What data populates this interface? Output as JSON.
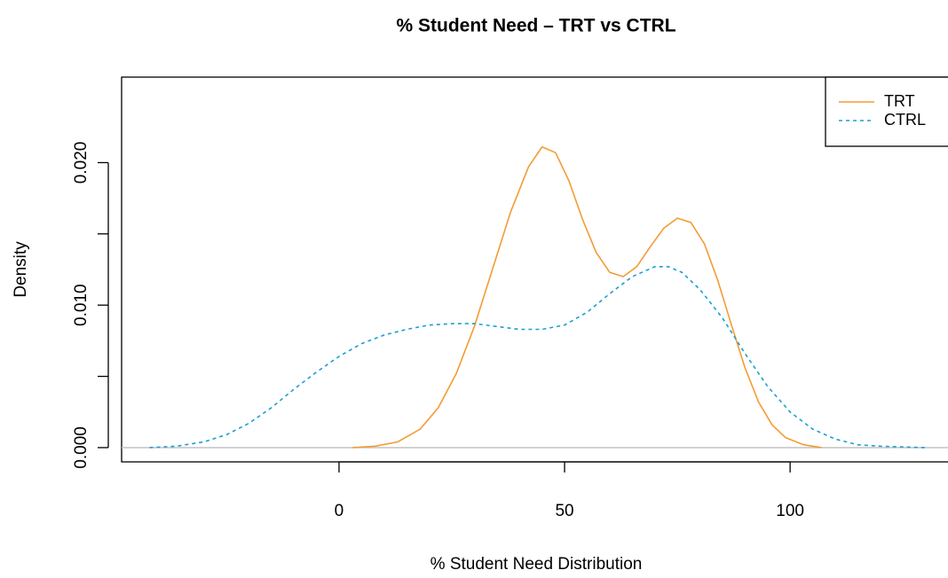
{
  "chart_data": {
    "type": "line",
    "title": "% Student Need – TRT vs CTRL",
    "xlabel": "% Student Need Distribution",
    "ylabel": "Density",
    "xlim": [
      -48.2,
      135
    ],
    "ylim": [
      -0.001,
      0.026
    ],
    "xticks": [
      0,
      50,
      100
    ],
    "yticks": [
      {
        "value": 0,
        "label": "0.000"
      },
      {
        "value": 0.005,
        "label": null
      },
      {
        "value": 0.01,
        "label": "0.010"
      },
      {
        "value": 0.015,
        "label": null
      },
      {
        "value": 0.02,
        "label": "0.020"
      }
    ],
    "legend": "topright",
    "series": [
      {
        "name": "TRT",
        "color": "#f39c34",
        "dash": false,
        "x": [
          3,
          8,
          13,
          18,
          22,
          26,
          30,
          34,
          38,
          42,
          45,
          48,
          51,
          54,
          57,
          60,
          63,
          66,
          69,
          72,
          75,
          78,
          81,
          84,
          87,
          90,
          93,
          96,
          99,
          103,
          107
        ],
        "values": [
          0,
          0.0001,
          0.0004,
          0.0013,
          0.0028,
          0.0052,
          0.0085,
          0.0125,
          0.0165,
          0.0197,
          0.0211,
          0.0207,
          0.0187,
          0.016,
          0.0137,
          0.0123,
          0.012,
          0.0127,
          0.0141,
          0.0154,
          0.0161,
          0.0158,
          0.0143,
          0.0117,
          0.0086,
          0.0056,
          0.0032,
          0.0016,
          0.0007,
          0.0002,
          0
        ]
      },
      {
        "name": "CTRL",
        "color": "#1c9fd3",
        "dash": true,
        "x": [
          -42,
          -36,
          -30,
          -25,
          -20,
          -15,
          -10,
          -5,
          0,
          5,
          10,
          15,
          20,
          25,
          30,
          35,
          40,
          45,
          50,
          55,
          60,
          65,
          70,
          73,
          76,
          80,
          85,
          90,
          95,
          100,
          105,
          110,
          115,
          120,
          130
        ],
        "values": [
          0,
          0.0001,
          0.0004,
          0.0009,
          0.0017,
          0.0028,
          0.0041,
          0.0053,
          0.0064,
          0.0073,
          0.0079,
          0.0083,
          0.0086,
          0.0087,
          0.0087,
          0.0085,
          0.0083,
          0.0083,
          0.0086,
          0.0095,
          0.0108,
          0.012,
          0.0127,
          0.0127,
          0.0123,
          0.0111,
          0.0091,
          0.0066,
          0.0043,
          0.0025,
          0.0013,
          0.0006,
          0.0002,
          0.0001,
          0
        ]
      }
    ]
  }
}
